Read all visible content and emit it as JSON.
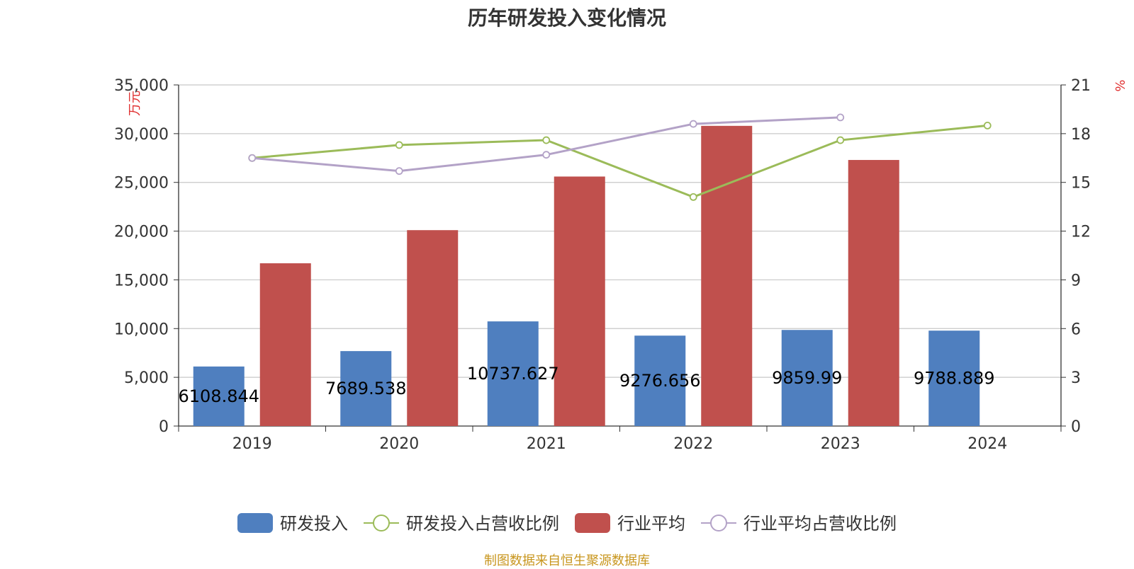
{
  "title": "历年研发投入变化情况",
  "source": "制图数据来自恒生聚源数据库",
  "chart_data": {
    "type": "bar",
    "categories": [
      "2019",
      "2020",
      "2021",
      "2022",
      "2023",
      "2024"
    ],
    "y_left": {
      "unit": "万元",
      "min": 0,
      "max": 35000,
      "ticks": [
        "0",
        "5,000",
        "10,000",
        "15,000",
        "20,000",
        "25,000",
        "30,000",
        "35,000"
      ]
    },
    "y_right": {
      "unit": "%",
      "min": 0,
      "max": 21,
      "ticks": [
        "0",
        "3",
        "6",
        "9",
        "12",
        "15",
        "18",
        "21"
      ]
    },
    "grid": true,
    "legend_position": "bottom",
    "series": [
      {
        "name": "研发投入",
        "kind": "bar",
        "axis": "left",
        "color": "#4f7fbf",
        "values": [
          6108.844,
          7689.538,
          10737.627,
          9276.656,
          9859.99,
          9788.889
        ],
        "labels": [
          "6108.844",
          "7689.538",
          "10737.627",
          "9276.656",
          "9859.99",
          "9788.889"
        ]
      },
      {
        "name": "研发投入占营收比例",
        "kind": "line",
        "axis": "right",
        "color": "#9bbb59",
        "values": [
          16.5,
          17.3,
          17.6,
          14.1,
          17.6,
          18.5
        ]
      },
      {
        "name": "行业平均",
        "kind": "bar",
        "axis": "left",
        "color": "#c0504d",
        "values": [
          16700,
          20100,
          25600,
          30800,
          27300,
          null
        ]
      },
      {
        "name": "行业平均占营收比例",
        "kind": "line",
        "axis": "right",
        "color": "#b3a2c7",
        "values": [
          16.5,
          15.7,
          16.7,
          18.6,
          19.0,
          null
        ]
      }
    ]
  }
}
